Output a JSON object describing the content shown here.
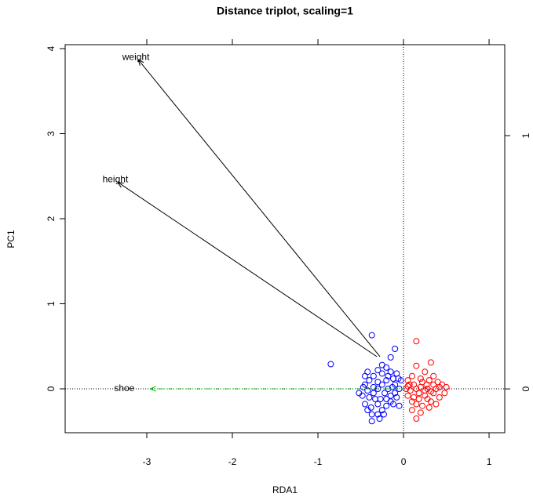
{
  "chart_data": {
    "type": "scatter",
    "title": "Distance triplot, scaling=1",
    "xlabel": "RDA1",
    "ylabel": "PC1",
    "xlim": [
      -3.954,
      1.183
    ],
    "ylim": [
      -0.516,
      4.046
    ],
    "y2lim": [
      -0.173,
      1.359
    ],
    "xticks": [
      -3,
      -2,
      -1,
      0,
      1
    ],
    "yticks": [
      0,
      1,
      2,
      3,
      4
    ],
    "y2ticks": [
      0,
      1
    ],
    "origin_lines": true,
    "series": [
      {
        "color": "#0000ff",
        "x": [
          -0.85,
          -0.37,
          -0.1,
          -0.15,
          -0.25,
          -0.2,
          -0.3,
          -0.42,
          -0.45,
          -0.35,
          -0.25,
          -0.15,
          -0.08,
          -0.12,
          -0.2,
          -0.3,
          -0.4,
          -0.45,
          -0.52,
          -0.48,
          -0.42,
          -0.4,
          -0.35,
          -0.3,
          -0.27,
          -0.22,
          -0.18,
          -0.15,
          -0.1,
          -0.05,
          -0.08,
          -0.12,
          -0.2,
          -0.25,
          -0.3,
          -0.37,
          -0.37,
          -0.38,
          -0.45,
          -0.42,
          -0.28,
          -0.15,
          -0.05,
          -0.03,
          -0.25,
          -0.35,
          -0.18,
          -0.3,
          -0.2,
          -0.1,
          -0.06,
          -0.13,
          -0.47,
          -0.33,
          -0.23
        ],
        "y": [
          0.29,
          0.63,
          0.47,
          0.37,
          0.28,
          0.25,
          0.22,
          0.2,
          0.15,
          0.15,
          0.18,
          0.2,
          0.18,
          0.12,
          0.1,
          0.08,
          0.1,
          0.05,
          -0.05,
          -0.08,
          -0.02,
          -0.1,
          -0.05,
          0.0,
          -0.12,
          -0.05,
          0.0,
          -0.08,
          0.05,
          0.0,
          -0.1,
          -0.18,
          -0.2,
          -0.25,
          -0.3,
          -0.38,
          -0.3,
          -0.22,
          -0.18,
          -0.25,
          -0.35,
          -0.15,
          -0.2,
          0.1,
          0.05,
          0.02,
          0.15,
          -0.18,
          -0.12,
          -0.05,
          0.12,
          0.02,
          0.02,
          -0.12,
          -0.3
        ]
      },
      {
        "color": "#ff0000",
        "x": [
          0.15,
          0.15,
          0.32,
          0.25,
          0.35,
          0.1,
          0.05,
          0.2,
          0.3,
          0.4,
          0.45,
          0.5,
          0.48,
          0.42,
          0.35,
          0.28,
          0.2,
          0.12,
          0.08,
          0.03,
          0.05,
          0.12,
          0.18,
          0.25,
          0.32,
          0.38,
          0.3,
          0.22,
          0.15,
          0.1,
          0.15,
          0.28,
          0.38,
          0.22,
          0.15,
          0.07,
          0.18,
          0.35,
          0.42,
          0.27,
          0.1,
          0.25,
          0.32,
          0.05,
          0.2
        ],
        "y": [
          0.56,
          0.27,
          0.31,
          0.2,
          0.15,
          0.15,
          0.1,
          0.12,
          0.1,
          0.08,
          0.05,
          0.02,
          -0.05,
          -0.1,
          -0.05,
          0.0,
          0.02,
          0.05,
          -0.02,
          0.0,
          -0.08,
          -0.1,
          -0.05,
          -0.08,
          -0.15,
          -0.18,
          -0.22,
          -0.2,
          -0.18,
          -0.25,
          -0.35,
          -0.12,
          0.0,
          0.08,
          0.0,
          0.05,
          -0.12,
          0.05,
          0.02,
          0.05,
          -0.15,
          -0.02,
          -0.03,
          0.03,
          -0.28
        ]
      }
    ],
    "arrows": [
      {
        "label": "weight",
        "x0": -0.275,
        "y0": 0.378,
        "x1": -3.1,
        "y1": 3.87,
        "line_color": "#000000",
        "label_color": "#ff0000",
        "dotted": false
      },
      {
        "label": "height",
        "x0": -0.31,
        "y0": 0.378,
        "x1": -3.34,
        "y1": 2.43,
        "line_color": "#000000",
        "label_color": "#ff0000",
        "dotted": false
      },
      {
        "label": "shoe",
        "x0": 0,
        "y0": 0,
        "x1": -2.96,
        "y1": 0,
        "line_color": "#00cd00",
        "label_color": "#00cd00",
        "dotted": true
      }
    ]
  }
}
